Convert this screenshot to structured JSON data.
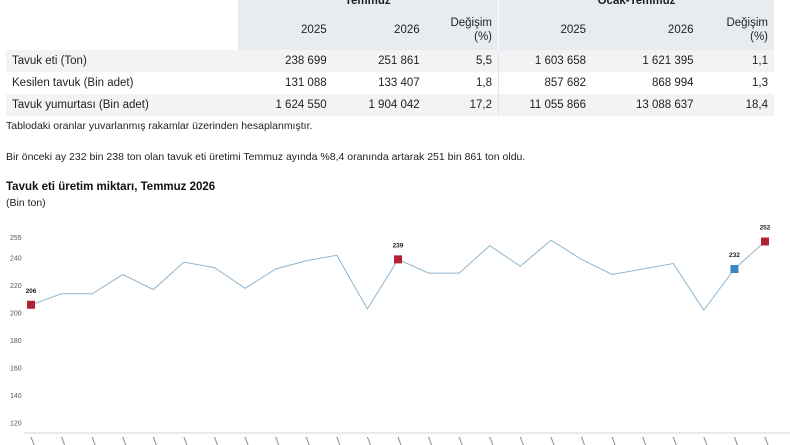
{
  "table": {
    "group_headers": [
      "Temmuz",
      "Ocak-Temmuz"
    ],
    "sub_headers": [
      "2025",
      "2026",
      "Değişim (%)",
      "2025",
      "2026",
      "Değişim (%)"
    ],
    "rows": [
      {
        "label": "Tavuk eti (Ton)",
        "values": [
          "238 699",
          "251 861",
          "5,5",
          "1 603 658",
          "1 621 395",
          "1,1"
        ]
      },
      {
        "label": "Kesilen tavuk (Bin adet)",
        "values": [
          "131 088",
          "133 407",
          "1,8",
          "857 682",
          "868 994",
          "1,3"
        ]
      },
      {
        "label": "Tavuk yumurtası (Bin adet)",
        "values": [
          "1 624 550",
          "1 904 042",
          "17,2",
          "11 055 866",
          "13 088 637",
          "18,4"
        ]
      }
    ]
  },
  "note": "Tablodaki oranlar yuvarlanmış rakamlar üzerinden hesaplanmıştır.",
  "paragraph": "Bir önceki ay 232 bin 238 ton olan tavuk eti üretimi Temmuz ayında %8,4 oranında artarak 251 bin 861 ton oldu.",
  "chart_title": "Tavuk eti üretim miktarı, Temmuz 2026",
  "chart_unit": "(Bin ton)",
  "chart_data": {
    "type": "line",
    "yticks": [
      120,
      140,
      160,
      180,
      200,
      220,
      240,
      255
    ],
    "values": [
      206,
      214,
      214,
      228,
      217,
      237,
      233,
      218,
      232,
      238,
      242,
      203,
      239,
      229,
      229,
      249,
      234,
      253,
      239,
      228,
      232,
      236,
      202,
      232,
      252
    ],
    "highlights": [
      {
        "index": 0,
        "label": "206",
        "color": "#b22234"
      },
      {
        "index": 12,
        "label": "239",
        "color": "#b22234"
      },
      {
        "index": 23,
        "label": "232",
        "color": "#3d85c6"
      },
      {
        "index": 24,
        "label": "252",
        "color": "#b22234"
      }
    ],
    "line_color": "#8fb4cf",
    "grid": false
  }
}
